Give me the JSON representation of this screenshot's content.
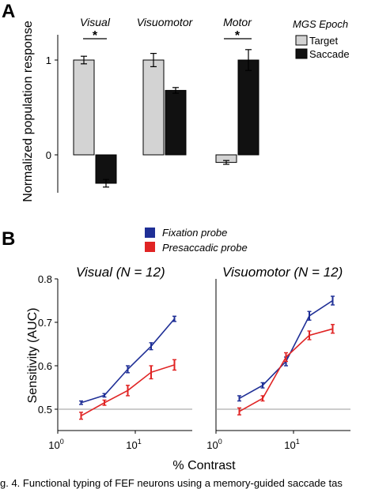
{
  "panel_a": {
    "letter": "A",
    "groups": [
      "Visual",
      "Visuomotor",
      "Motor"
    ],
    "star": "*",
    "ylabel": "Normalized population response",
    "yticks": [
      "1",
      "0"
    ],
    "legend_title": "MGS Epoch",
    "legend_items": [
      "Target",
      "Saccade"
    ]
  },
  "panel_b": {
    "letter": "B",
    "legend_items": [
      "Fixation  probe",
      "Presaccadic probe"
    ],
    "left_title": "Visual (N = 12)",
    "right_title": "Visuomotor (N = 12)",
    "ylabel": "Sensitivity (AUC)",
    "yticks": [
      "0.8",
      "0.7",
      "0.6",
      "0.5"
    ],
    "xtick_base": "10",
    "xtick_exps": [
      "0",
      "1"
    ],
    "xlabel": "% Contrast"
  },
  "caption": "g. 4. Functional typing of FEF neurons using a memory-guided saccade tas",
  "colors": {
    "target": "#d3d3d3",
    "saccade": "#111111",
    "fixation": "#1f2f96",
    "presaccadic": "#e02424"
  },
  "chart_data": [
    {
      "type": "bar",
      "title": "",
      "categories": [
        "Visual",
        "Visuomotor",
        "Motor"
      ],
      "series": [
        {
          "name": "Target",
          "values": [
            1.0,
            1.0,
            -0.08
          ],
          "errors": [
            0.04,
            0.07,
            0.02
          ]
        },
        {
          "name": "Saccade",
          "values": [
            -0.3,
            0.68,
            1.0
          ],
          "errors": [
            0.04,
            0.03,
            0.11
          ]
        }
      ],
      "ylabel": "Normalized population response",
      "ylim": [
        -0.4,
        1.25
      ],
      "significance": [
        "Visual",
        "Motor"
      ],
      "legend_position": "top-right"
    },
    {
      "type": "line",
      "title": "Visual (N = 12)",
      "xscale": "log",
      "x": [
        2,
        4,
        8,
        16,
        32
      ],
      "series": [
        {
          "name": "Fixation  probe",
          "values": [
            0.515,
            0.532,
            0.592,
            0.645,
            0.708
          ],
          "errors": [
            0.004,
            0.004,
            0.008,
            0.008,
            0.006
          ]
        },
        {
          "name": "Presaccadic probe",
          "values": [
            0.485,
            0.515,
            0.543,
            0.585,
            0.602
          ],
          "errors": [
            0.008,
            0.006,
            0.012,
            0.015,
            0.012
          ]
        }
      ],
      "xlabel": "% Contrast",
      "ylabel": "Sensitivity (AUC)",
      "xlim": [
        1,
        60
      ],
      "ylim": [
        0.45,
        0.8
      ],
      "reference_line": 0.5
    },
    {
      "type": "line",
      "title": "Visuomotor (N = 12)",
      "xscale": "log",
      "x": [
        2,
        4,
        8,
        16,
        32
      ],
      "series": [
        {
          "name": "Fixation  probe",
          "values": [
            0.525,
            0.555,
            0.61,
            0.715,
            0.75
          ],
          "errors": [
            0.006,
            0.006,
            0.01,
            0.01,
            0.01
          ]
        },
        {
          "name": "Presaccadic probe",
          "values": [
            0.495,
            0.525,
            0.62,
            0.67,
            0.685
          ],
          "errors": [
            0.008,
            0.006,
            0.01,
            0.01,
            0.01
          ]
        }
      ],
      "xlabel": "% Contrast",
      "ylabel": "Sensitivity (AUC)",
      "xlim": [
        1,
        60
      ],
      "ylim": [
        0.45,
        0.8
      ],
      "reference_line": 0.5
    }
  ]
}
